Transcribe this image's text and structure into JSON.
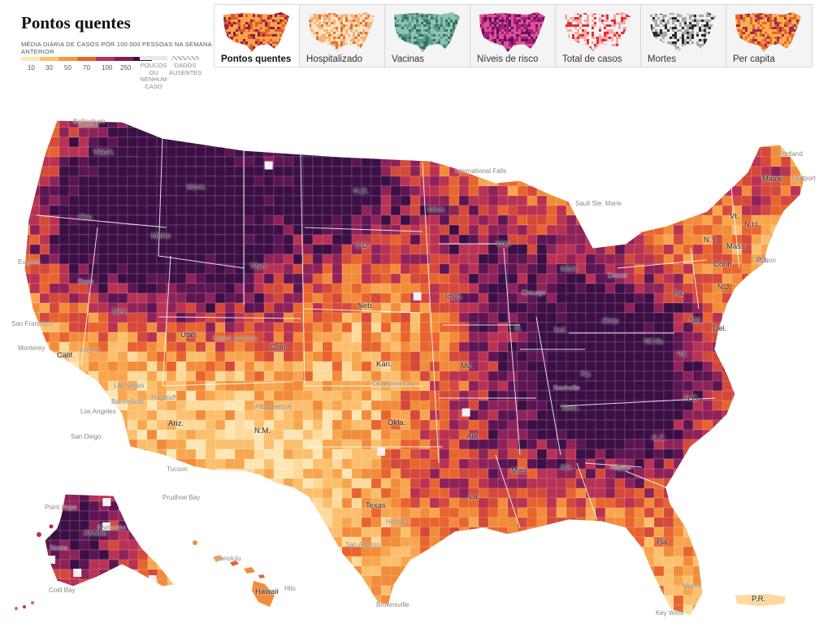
{
  "header": {
    "title": "Pontos quentes",
    "legend_caption": "MÉDIA DIÁRIA DE CASOS POR 100.000 PESSOAS NA SEMANA ANTERIOR",
    "scale_ticks": [
      "10",
      "30",
      "50",
      "70",
      "100",
      "250"
    ],
    "scale_colors": [
      "#fde6b3",
      "#fcbf6e",
      "#f79a3a",
      "#e8642f",
      "#b93253",
      "#7c1f5c",
      "#3b0f45"
    ],
    "few_cases_label": "POUCOS OU NENHUM CASO",
    "missing_label": "DADOS AUSENTES"
  },
  "tabs": [
    {
      "label": "Pontos quentes",
      "active": true,
      "palette": [
        "#f6a24a",
        "#e15a2c",
        "#8b1f4e"
      ]
    },
    {
      "label": "Hospitalizado",
      "active": false,
      "palette": [
        "#fbe3c4",
        "#f5b27a",
        "#e1702f"
      ]
    },
    {
      "label": "Vacinas",
      "active": false,
      "palette": [
        "#8bc3b4",
        "#5a9c8c",
        "#3b6f63"
      ]
    },
    {
      "label": "Níveis de risco",
      "active": false,
      "palette": [
        "#e0508e",
        "#a4217a",
        "#5a1263"
      ]
    },
    {
      "label": "Total de casos",
      "active": false,
      "palette": [
        "#f3f3f3",
        "#f7a8a8",
        "#e3302f"
      ]
    },
    {
      "label": "Mortes",
      "active": false,
      "palette": [
        "#eeeeee",
        "#a8a8a8",
        "#2a2a2a"
      ]
    },
    {
      "label": "Per capita",
      "active": false,
      "palette": [
        "#f7b04e",
        "#e8642f",
        "#a02a52"
      ]
    }
  ],
  "map": {
    "state_labels": [
      {
        "text": "Wash."
      },
      {
        "text": "Ore."
      },
      {
        "text": "Calif."
      },
      {
        "text": "Nev."
      },
      {
        "text": "Idaho"
      },
      {
        "text": "Mont."
      },
      {
        "text": "Wyo."
      },
      {
        "text": "Utah"
      },
      {
        "text": "Ariz."
      },
      {
        "text": "Colo."
      },
      {
        "text": "N.M."
      },
      {
        "text": "N.D."
      },
      {
        "text": "S.D."
      },
      {
        "text": "Neb."
      },
      {
        "text": "Kan."
      },
      {
        "text": "Okla."
      },
      {
        "text": "Texas"
      },
      {
        "text": "Minn."
      },
      {
        "text": "Iowa"
      },
      {
        "text": "Mo."
      },
      {
        "text": "Ark."
      },
      {
        "text": "La."
      },
      {
        "text": "Wis."
      },
      {
        "text": "Ill."
      },
      {
        "text": "Mich."
      },
      {
        "text": "Ind."
      },
      {
        "text": "Ohio"
      },
      {
        "text": "Ky."
      },
      {
        "text": "Tenn."
      },
      {
        "text": "Miss."
      },
      {
        "text": "Ala."
      },
      {
        "text": "Ga."
      },
      {
        "text": "Fla."
      },
      {
        "text": "S.C."
      },
      {
        "text": "N.C."
      },
      {
        "text": "Va."
      },
      {
        "text": "W.Va."
      },
      {
        "text": "Pa."
      },
      {
        "text": "N.Y."
      },
      {
        "text": "Md."
      },
      {
        "text": "Del."
      },
      {
        "text": "N.J."
      },
      {
        "text": "Conn."
      },
      {
        "text": "R.I."
      },
      {
        "text": "Mass."
      },
      {
        "text": "Vt."
      },
      {
        "text": "N.H."
      },
      {
        "text": "Maine"
      },
      {
        "text": "Alaska"
      },
      {
        "text": "Hawaii"
      },
      {
        "text": "P.R."
      }
    ],
    "city_labels": [
      {
        "text": "Seattle"
      },
      {
        "text": "Eugene"
      },
      {
        "text": "San Francisco"
      },
      {
        "text": "Monterey"
      },
      {
        "text": "Fresno"
      },
      {
        "text": "Los Angeles"
      },
      {
        "text": "San Diego"
      },
      {
        "text": "Reno"
      },
      {
        "text": "Las Vegas"
      },
      {
        "text": "Bakersfield"
      },
      {
        "text": "Flagstaff"
      },
      {
        "text": "Tucson"
      },
      {
        "text": "Grand Junction"
      },
      {
        "text": "Albuquerque"
      },
      {
        "text": "Oklahoma City"
      },
      {
        "text": "Chicago"
      },
      {
        "text": "Detroit"
      },
      {
        "text": "Nashville"
      },
      {
        "text": "Atlanta"
      },
      {
        "text": "Miami"
      },
      {
        "text": "Key West"
      },
      {
        "text": "Houston"
      },
      {
        "text": "San Antonio"
      },
      {
        "text": "Brownsville"
      },
      {
        "text": "International Falls"
      },
      {
        "text": "Sault Ste. Marie"
      },
      {
        "text": "Boston"
      },
      {
        "text": "Portland"
      },
      {
        "text": "Fairbanks"
      },
      {
        "text": "Nome"
      },
      {
        "text": "Cold Bay"
      },
      {
        "text": "Honolulu"
      },
      {
        "text": "Hilo"
      },
      {
        "text": "Eastport"
      },
      {
        "text": "Bellingham"
      },
      {
        "text": "Point Hope"
      },
      {
        "text": "Prudhoe Bay"
      }
    ]
  }
}
